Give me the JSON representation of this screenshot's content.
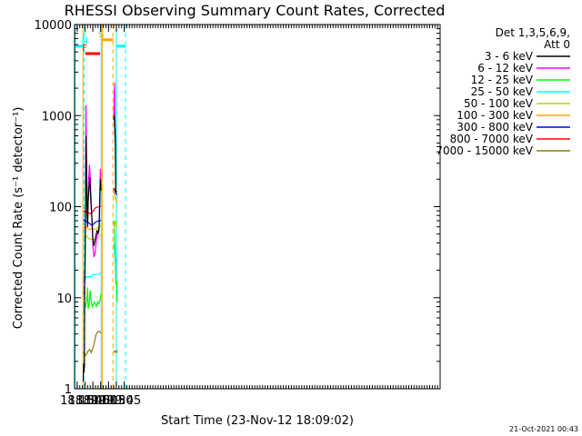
{
  "chart_data": {
    "type": "line",
    "title": "RHESSI Observing Summary Count Rates, Corrected",
    "xlabel": "Start Time (23-Nov-12 18:09:02)",
    "ylabel": "Corrected Count Rate (s⁻¹ detector⁻¹)",
    "y_scale": "log",
    "ylim": [
      1,
      10000
    ],
    "xlim_min": [
      1090,
      1790
    ],
    "x_ticks": [
      {
        "min": 1095,
        "label": "18:15"
      },
      {
        "min": 1110,
        "label": "18:30"
      },
      {
        "min": 1125,
        "label": "18:45"
      },
      {
        "min": 1140,
        "label": "19:00"
      },
      {
        "min": 1155,
        "label": "19:15"
      },
      {
        "min": 1170,
        "label": "19:30"
      },
      {
        "min": 1185,
        "label": "19:45"
      }
    ],
    "y_ticks": [
      {
        "v": 1,
        "label": "1"
      },
      {
        "v": 10,
        "label": "10"
      },
      {
        "v": 100,
        "label": "100"
      },
      {
        "v": 1000,
        "label": "1000"
      },
      {
        "v": 10000,
        "label": "10000"
      }
    ],
    "legend_header": [
      "Det 1,3,5,6,9,",
      "Att 0"
    ],
    "legend_position": "right",
    "series": [
      {
        "name": "3 - 6 keV",
        "color": "#000000",
        "points": [
          [
            1106.5,
            1.2
          ],
          [
            1107.5,
            1.9
          ],
          [
            1108,
            1.5
          ],
          [
            1109,
            1.8
          ],
          [
            1109.3,
            14
          ],
          [
            1110,
            25
          ],
          [
            1111,
            120
          ],
          [
            1112,
            600
          ],
          [
            1113,
            250
          ],
          [
            1114,
            80
          ],
          [
            1115,
            60
          ],
          [
            1116,
            110
          ],
          [
            1117,
            140
          ],
          [
            1119,
            210
          ],
          [
            1121,
            120
          ],
          [
            1123,
            75
          ],
          [
            1125,
            45
          ],
          [
            1127,
            37
          ],
          [
            1129,
            42
          ],
          [
            1131,
            48
          ],
          [
            1133,
            55
          ],
          [
            1135,
            50
          ],
          [
            1137,
            60
          ],
          [
            1138.5,
            140
          ],
          [
            1139.5,
            200
          ],
          [
            1140.5,
            150
          ]
        ]
      },
      {
        "name": "6 - 12 keV",
        "color": "#ff00ff",
        "points": [
          [
            1107.5,
            11
          ],
          [
            1109,
            12
          ],
          [
            1110,
            18
          ],
          [
            1111,
            110
          ],
          [
            1112,
            1300
          ],
          [
            1113,
            350
          ],
          [
            1114,
            100
          ],
          [
            1115,
            70
          ],
          [
            1116,
            120
          ],
          [
            1117,
            200
          ],
          [
            1118.5,
            290
          ],
          [
            1120,
            210
          ],
          [
            1122,
            110
          ],
          [
            1124,
            60
          ],
          [
            1125,
            38
          ],
          [
            1127,
            28
          ],
          [
            1129,
            30
          ],
          [
            1131,
            38
          ],
          [
            1133,
            48
          ],
          [
            1135,
            50
          ],
          [
            1137,
            55
          ],
          [
            1138.5,
            160
          ],
          [
            1139.5,
            260
          ],
          [
            1140.5,
            170
          ]
        ]
      },
      {
        "name": "12 - 25 keV",
        "color": "#00ff00",
        "points": [
          [
            1107,
            7
          ],
          [
            1109,
            7.5
          ],
          [
            1111,
            8
          ],
          [
            1113,
            9
          ],
          [
            1115,
            13
          ],
          [
            1116,
            7.5
          ],
          [
            1118,
            8.5
          ],
          [
            1120,
            12
          ],
          [
            1122,
            9
          ],
          [
            1124,
            8
          ],
          [
            1126,
            8.5
          ],
          [
            1128,
            9
          ],
          [
            1130,
            8.5
          ],
          [
            1132,
            8
          ],
          [
            1134,
            9
          ],
          [
            1136,
            8.5
          ],
          [
            1138,
            9
          ],
          [
            1139.5,
            10
          ],
          [
            1140.5,
            11
          ]
        ]
      },
      {
        "name": "25 - 50 keV",
        "color": "#00ffff",
        "points": [
          [
            1107,
            17
          ],
          [
            1110,
            16
          ],
          [
            1113,
            17
          ],
          [
            1116,
            17
          ],
          [
            1119,
            17
          ],
          [
            1122,
            17
          ],
          [
            1125,
            18
          ],
          [
            1128,
            18
          ],
          [
            1131,
            18
          ],
          [
            1134,
            18
          ],
          [
            1137,
            18
          ],
          [
            1140.5,
            19
          ]
        ]
      },
      {
        "name": "50 - 100 keV",
        "color": "#cccc00",
        "points": [
          [
            1107,
            48
          ],
          [
            1110,
            47
          ],
          [
            1113,
            48
          ],
          [
            1116,
            45
          ],
          [
            1119,
            44
          ],
          [
            1122,
            44
          ],
          [
            1125,
            43
          ],
          [
            1128,
            44
          ],
          [
            1131,
            45
          ],
          [
            1134,
            46
          ],
          [
            1137,
            46
          ],
          [
            1140.5,
            50
          ]
        ]
      },
      {
        "name": "100 - 300 keV",
        "color": "#ffa500",
        "points": [
          [
            1107,
            60
          ],
          [
            1110,
            58
          ],
          [
            1113,
            60
          ],
          [
            1116,
            57
          ],
          [
            1119,
            56
          ],
          [
            1122,
            57
          ],
          [
            1125,
            57
          ],
          [
            1128,
            57
          ],
          [
            1131,
            57
          ],
          [
            1134,
            58
          ],
          [
            1137,
            60
          ],
          [
            1140.5,
            62
          ]
        ]
      },
      {
        "name": "300 - 800 keV",
        "color": "#0000ff",
        "points": [
          [
            1107,
            72
          ],
          [
            1110,
            70
          ],
          [
            1113,
            69
          ],
          [
            1116,
            67
          ],
          [
            1119,
            65
          ],
          [
            1122,
            63
          ],
          [
            1125,
            63
          ],
          [
            1128,
            66
          ],
          [
            1131,
            68
          ],
          [
            1134,
            69
          ],
          [
            1137,
            70
          ],
          [
            1140.5,
            71
          ]
        ]
      },
      {
        "name": "800 - 7000 keV",
        "color": "#ff0000",
        "points": [
          [
            1107,
            90
          ],
          [
            1110,
            88
          ],
          [
            1113,
            88
          ],
          [
            1116,
            86
          ],
          [
            1119,
            84
          ],
          [
            1122,
            85
          ],
          [
            1125,
            88
          ],
          [
            1128,
            94
          ],
          [
            1131,
            98
          ],
          [
            1134,
            99
          ],
          [
            1137,
            100
          ],
          [
            1140.5,
            101
          ]
        ]
      },
      {
        "name": "7000 - 15000 keV",
        "color": "#808000",
        "points": [
          [
            1107,
            2.5
          ],
          [
            1110,
            2.3
          ],
          [
            1113,
            2.4
          ],
          [
            1116,
            2.6
          ],
          [
            1119,
            2.7
          ],
          [
            1122,
            2.5
          ],
          [
            1125,
            2.8
          ],
          [
            1128,
            3.2
          ],
          [
            1131,
            3.9
          ],
          [
            1134,
            4.2
          ],
          [
            1137,
            4.3
          ],
          [
            1140.5,
            4.1
          ]
        ]
      }
    ],
    "late_segment": {
      "black": [
        [
          1165,
          900
        ],
        [
          1166,
          1000
        ],
        [
          1167,
          700
        ],
        [
          1168,
          500
        ],
        [
          1168.8,
          140
        ]
      ],
      "magenta": [
        [
          1165,
          1000
        ],
        [
          1166,
          1500
        ],
        [
          1166.8,
          2300
        ],
        [
          1167.5,
          900
        ],
        [
          1168.3,
          600
        ],
        [
          1168.8,
          170
        ]
      ],
      "red": [
        [
          1165,
          160
        ],
        [
          1167,
          155
        ],
        [
          1169,
          150
        ],
        [
          1171,
          145
        ],
        [
          1171.5,
          145
        ]
      ],
      "blue": [
        [
          1165,
          155
        ],
        [
          1167,
          150
        ],
        [
          1169,
          140
        ],
        [
          1171,
          135
        ],
        [
          1171.5,
          135
        ]
      ],
      "orange": [
        [
          1165,
          145
        ],
        [
          1167,
          130
        ],
        [
          1169,
          120
        ],
        [
          1171,
          115
        ],
        [
          1171.5,
          110
        ]
      ],
      "yellow": [
        [
          1165,
          55
        ],
        [
          1167,
          60
        ],
        [
          1169,
          70
        ],
        [
          1171,
          62
        ],
        [
          1171.5,
          60
        ]
      ],
      "green": [
        [
          1165,
          65
        ],
        [
          1166,
          70
        ],
        [
          1167,
          45
        ],
        [
          1168.5,
          20
        ],
        [
          1169,
          14
        ],
        [
          1171,
          15
        ],
        [
          1171.5,
          9
        ]
      ],
      "cyan": [
        [
          1165,
          40
        ],
        [
          1167,
          30
        ],
        [
          1169,
          26
        ],
        [
          1171,
          26
        ],
        [
          1171.5,
          25
        ]
      ],
      "olive": [
        [
          1165,
          2.5
        ],
        [
          1167,
          2.6
        ],
        [
          1169,
          2.5
        ],
        [
          1171,
          2.6
        ],
        [
          1171.5,
          2.5
        ]
      ]
    },
    "flag_bars": [
      {
        "label": "N",
        "color": "#00ffff",
        "segments": [
          [
            1090,
            1107.5
          ],
          [
            1170,
            1188
          ]
        ],
        "level": 5800,
        "label_x": 1109.5
      },
      {
        "label": "F",
        "color": "#ff0000",
        "segments": [
          [
            1110.5,
            1139
          ]
        ],
        "level": 4800,
        "label_x": 1109.5
      },
      {
        "label": "S",
        "color": "#ffa500",
        "segments": [
          [
            1143,
            1164
          ]
        ],
        "level": 6800,
        "label_x": 1141
      }
    ],
    "vertical_lines": [
      {
        "min": 1091,
        "color": "#00ffff",
        "style": "solid"
      },
      {
        "min": 1108,
        "color": "#00ffff",
        "style": "dashed"
      },
      {
        "min": 1106.2,
        "color": "#ffa500",
        "style": "solid"
      },
      {
        "min": 1141,
        "color": "#00ffff",
        "style": "solid"
      },
      {
        "min": 1142.8,
        "color": "#ffa500",
        "style": "solid"
      },
      {
        "min": 1163.5,
        "color": "#ffa500",
        "style": "dashed"
      },
      {
        "min": 1170.2,
        "color": "#00ffff",
        "style": "solid"
      },
      {
        "min": 1187.5,
        "color": "#00ffff",
        "style": "dashed"
      }
    ],
    "footer_date": "21-Oct-2021 00:43"
  }
}
